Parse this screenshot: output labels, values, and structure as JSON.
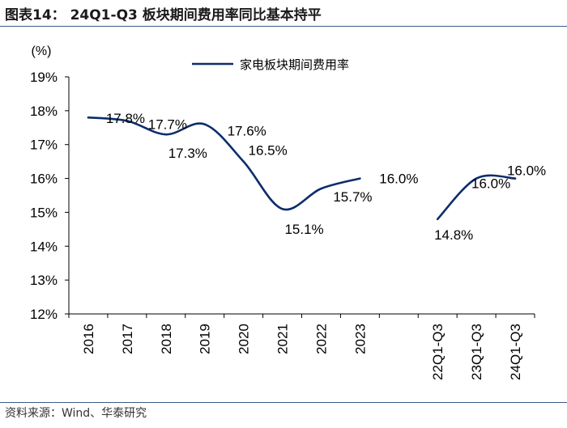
{
  "title": "图表14：  24Q1-Q3 板块期间费用率同比基本持平",
  "source": "资料来源：Wind、华泰研究",
  "colors": {
    "line": "#0c2d6b",
    "axis": "#000000",
    "rule": "#3b5c8c"
  },
  "chart_data": {
    "type": "line",
    "title": "",
    "unit_label": "(%)",
    "xlabel": "",
    "ylabel": "",
    "ylim": [
      12,
      19
    ],
    "yticks": [
      12,
      13,
      14,
      15,
      16,
      17,
      18,
      19
    ],
    "ytick_labels": [
      "12%",
      "13%",
      "14%",
      "15%",
      "16%",
      "17%",
      "18%",
      "19%"
    ],
    "grid": false,
    "legend_position": "top-center",
    "categories": [
      "2016",
      "2017",
      "2018",
      "2019",
      "2020",
      "2021",
      "2022",
      "2023",
      "",
      "22Q1-Q3",
      "23Q1-Q3",
      "24Q1-Q3"
    ],
    "series": [
      {
        "name": "家电板块期间费用率",
        "segments": [
          {
            "start_index": 0,
            "values": [
              17.8,
              17.7,
              17.3,
              17.6,
              16.5,
              15.1,
              15.7,
              16.0
            ]
          },
          {
            "start_index": 9,
            "values": [
              14.8,
              16.0,
              16.0
            ]
          }
        ]
      }
    ],
    "data_labels": [
      "17.8%",
      "17.7%",
      "17.3%",
      "17.6%",
      "16.5%",
      "15.1%",
      "15.7%",
      "16.0%",
      "14.8%",
      "16.0%",
      "16.0%"
    ]
  }
}
